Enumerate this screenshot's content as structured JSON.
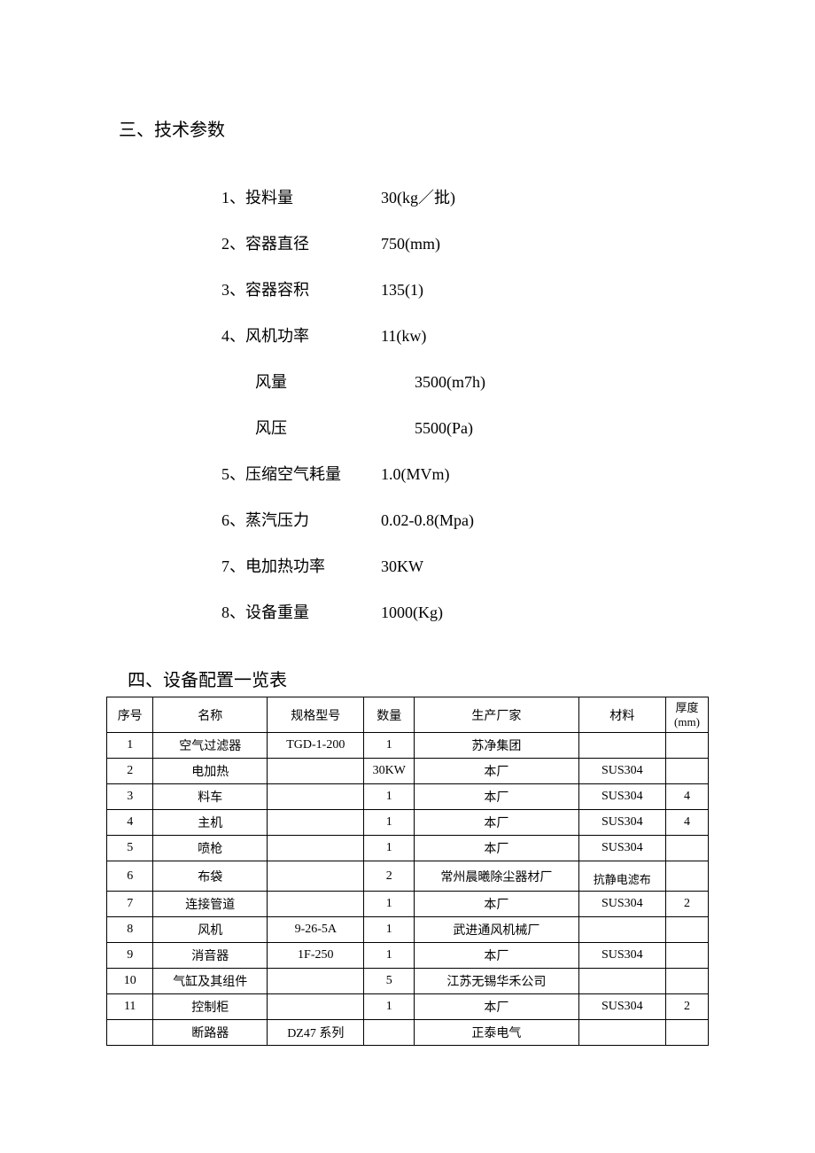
{
  "section1": {
    "title": "三、技术参数",
    "params": [
      {
        "idx": "1、",
        "label": "投料量",
        "value": "30(kg／批)",
        "sub": false
      },
      {
        "idx": "2、",
        "label": "容器直径",
        "value": "750(mm)",
        "sub": false
      },
      {
        "idx": "3、",
        "label": "容器容积",
        "value": "135(1)",
        "sub": false
      },
      {
        "idx": "4、",
        "label": "风机功率",
        "value": "11(kw)",
        "sub": false
      },
      {
        "idx": "",
        "label": "风量",
        "value": "3500(m7h)",
        "sub": true
      },
      {
        "idx": "",
        "label": "风压",
        "value": "5500(Pa)",
        "sub": true
      },
      {
        "idx": "5、",
        "label": "压缩空气耗量",
        "value": " 1.0(MVm)",
        "sub": false
      },
      {
        "idx": "6、",
        "label": "蒸汽压力",
        "value": " 0.02-0.8(Mpa)",
        "sub": false
      },
      {
        "idx": "7、",
        "label": "电加热功率",
        "value": "  30KW",
        "sub": false
      },
      {
        "idx": "8、",
        "label": "设备重量",
        "value": "1000(Kg)",
        "sub": false
      }
    ]
  },
  "section2": {
    "title": "四、设备配置一览表",
    "columns": {
      "seq": "序号",
      "name": "名称",
      "spec": "规格型号",
      "qty": "数量",
      "mfr": "生产厂家",
      "mat": "材料",
      "thk_line1": "厚度",
      "thk_line2": "(mm)"
    },
    "rows": [
      {
        "seq": "1",
        "name": "空气过滤器",
        "spec": "TGD-1-200",
        "qty": "1",
        "mfr": "苏净集团",
        "mat": "",
        "thk": "",
        "tall": false
      },
      {
        "seq": "2",
        "name": "电加热",
        "spec": "",
        "qty": "30KW",
        "mfr": "本厂",
        "mat": "SUS304",
        "thk": "",
        "tall": false
      },
      {
        "seq": "3",
        "name": "料车",
        "spec": "",
        "qty": "1",
        "mfr": "本厂",
        "mat": "SUS304",
        "thk": "4",
        "tall": false
      },
      {
        "seq": "4",
        "name": "主机",
        "spec": "",
        "qty": "1",
        "mfr": "本厂",
        "mat": "SUS304",
        "thk": "4",
        "tall": false
      },
      {
        "seq": "5",
        "name": "喷枪",
        "spec": "",
        "qty": "1",
        "mfr": "本厂",
        "mat": "SUS304",
        "thk": "",
        "tall": false
      },
      {
        "seq": "6",
        "name": "布袋",
        "spec": "",
        "qty": "2",
        "mfr": "常州晨曦除尘器材厂",
        "mat": "抗静电滤布",
        "thk": "",
        "tall": true
      },
      {
        "seq": "7",
        "name": "连接管道",
        "spec": "",
        "qty": "1",
        "mfr": "本厂",
        "mat": "SUS304",
        "thk": "2",
        "tall": false
      },
      {
        "seq": "8",
        "name": "风机",
        "spec": "9-26-5A",
        "qty": "1",
        "mfr": "武进通风机械厂",
        "mat": "",
        "thk": "",
        "tall": false
      },
      {
        "seq": "9",
        "name": "消音器",
        "spec": "1F-250",
        "qty": "1",
        "mfr": "本厂",
        "mat": "SUS304",
        "thk": "",
        "tall": false
      },
      {
        "seq": "10",
        "name": "气缸及其组件",
        "spec": "",
        "qty": "5",
        "mfr": "江苏无锡华禾公司",
        "mat": "",
        "thk": "",
        "tall": false
      },
      {
        "seq": "11",
        "name": "控制柜",
        "spec": "",
        "qty": "1",
        "mfr": "本厂",
        "mat": "SUS304",
        "thk": "2",
        "tall": false
      },
      {
        "seq": "",
        "name": "断路器",
        "spec": "DZ47 系列",
        "qty": "",
        "mfr": "正泰电气",
        "mat": "",
        "thk": "",
        "tall": false
      }
    ]
  }
}
